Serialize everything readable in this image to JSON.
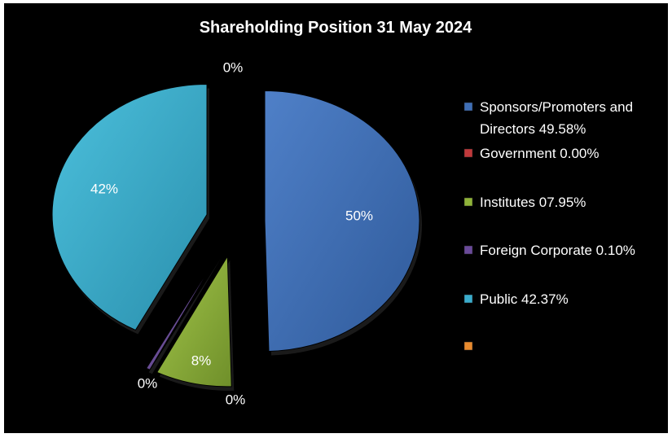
{
  "chart_data": {
    "type": "pie",
    "title": "Shareholding Position 31 May 2024",
    "categories": [
      "Sponsors/Promoters and Directors 49.58%",
      "Government 0.00%",
      "Institutes 07.95%",
      "Foreign Corporate 0.10%",
      "Public 42.37%",
      ""
    ],
    "values": [
      49.58,
      0.0,
      7.95,
      0.1,
      42.37,
      0
    ],
    "data_labels": [
      "50%",
      "0%",
      "8%",
      "0%",
      "42%",
      "0%"
    ],
    "colors": [
      "#3f6eb5",
      "#c0393b",
      "#8fb339",
      "#6a4a9a",
      "#3aaccc",
      "#e88a2e"
    ],
    "legend": {
      "placement": "right",
      "items": [
        {
          "label_lines": [
            "Sponsors/Promoters and",
            "Directors 49.58%"
          ],
          "color": "#3f6eb5"
        },
        {
          "label_lines": [
            "Government 0.00%"
          ],
          "color": "#c0393b"
        },
        {
          "label_lines": [
            "Institutes 07.95%"
          ],
          "color": "#8fb339"
        },
        {
          "label_lines": [
            "Foreign Corporate 0.10%"
          ],
          "color": "#6a4a9a"
        },
        {
          "label_lines": [
            "Public 42.37%"
          ],
          "color": "#3aaccc"
        },
        {
          "label_lines": [
            ""
          ],
          "color": "#e88a2e"
        }
      ]
    },
    "exploded": true,
    "background": "#000000"
  }
}
